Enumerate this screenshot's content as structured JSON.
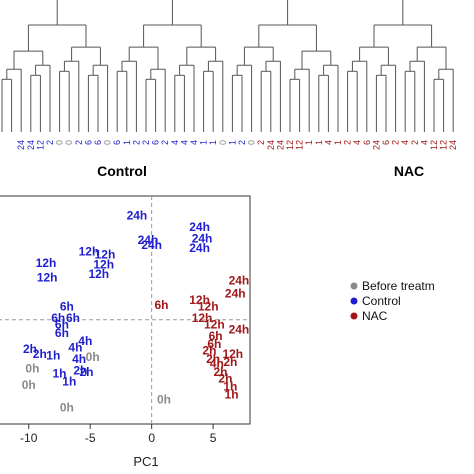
{
  "colors": {
    "before": "#8a8a8a",
    "control": "#1f1fcf",
    "nac": "#a01818",
    "line": "#555555"
  },
  "chart_data": [
    {
      "type": "dendrogram",
      "leaves": [
        {
          "label": "",
          "group": "control"
        },
        {
          "label": "",
          "group": "control"
        },
        {
          "label": "24",
          "group": "control"
        },
        {
          "label": "24",
          "group": "control"
        },
        {
          "label": "12",
          "group": "control"
        },
        {
          "label": "2",
          "group": "control"
        },
        {
          "label": "0",
          "group": "before"
        },
        {
          "label": "0",
          "group": "before"
        },
        {
          "label": "2",
          "group": "control"
        },
        {
          "label": "6",
          "group": "control"
        },
        {
          "label": "6",
          "group": "control"
        },
        {
          "label": "0",
          "group": "before"
        },
        {
          "label": "6",
          "group": "control"
        },
        {
          "label": "1",
          "group": "control"
        },
        {
          "label": "2",
          "group": "control"
        },
        {
          "label": "2",
          "group": "control"
        },
        {
          "label": "6",
          "group": "control"
        },
        {
          "label": "2",
          "group": "control"
        },
        {
          "label": "4",
          "group": "control"
        },
        {
          "label": "4",
          "group": "control"
        },
        {
          "label": "4",
          "group": "control"
        },
        {
          "label": "1",
          "group": "control"
        },
        {
          "label": "1",
          "group": "control"
        },
        {
          "label": "0",
          "group": "before"
        },
        {
          "label": "1",
          "group": "control"
        },
        {
          "label": "2",
          "group": "control"
        },
        {
          "label": "0",
          "group": "before"
        },
        {
          "label": "2",
          "group": "nac"
        },
        {
          "label": "24",
          "group": "nac"
        },
        {
          "label": "24",
          "group": "nac"
        },
        {
          "label": "12",
          "group": "nac"
        },
        {
          "label": "12",
          "group": "nac"
        },
        {
          "label": "1",
          "group": "nac"
        },
        {
          "label": "1",
          "group": "nac"
        },
        {
          "label": "4",
          "group": "nac"
        },
        {
          "label": "1",
          "group": "nac"
        },
        {
          "label": "2",
          "group": "nac"
        },
        {
          "label": "4",
          "group": "nac"
        },
        {
          "label": "6",
          "group": "nac"
        },
        {
          "label": "24",
          "group": "nac"
        },
        {
          "label": "6",
          "group": "nac"
        },
        {
          "label": "2",
          "group": "nac"
        },
        {
          "label": "4",
          "group": "nac"
        },
        {
          "label": "2",
          "group": "nac"
        },
        {
          "label": "4",
          "group": "nac"
        },
        {
          "label": "12",
          "group": "nac"
        },
        {
          "label": "12",
          "group": "nac"
        },
        {
          "label": "24",
          "group": "nac"
        }
      ],
      "group_labels": {
        "control": "Control",
        "nac": "NAC"
      }
    },
    {
      "type": "scatter",
      "xlabel": "PC1",
      "ylabel": "",
      "xlim": [
        -12.5,
        8
      ],
      "ylim": [
        -6.4,
        7.6
      ],
      "x_ticks": [
        -10,
        -5,
        0,
        5
      ],
      "reference_lines": {
        "x": 0,
        "y": 0
      },
      "legend": {
        "placement": "right",
        "entries": [
          {
            "name": "Before treatm",
            "group": "before"
          },
          {
            "name": "Control",
            "group": "control"
          },
          {
            "name": "NAC",
            "group": "nac"
          }
        ]
      },
      "points": [
        {
          "x": -1.2,
          "y": 6.4,
          "label": "24h",
          "group": "control"
        },
        {
          "x": 3.9,
          "y": 5.7,
          "label": "24h",
          "group": "control"
        },
        {
          "x": -0.3,
          "y": 4.9,
          "label": "24h",
          "group": "control"
        },
        {
          "x": 0.0,
          "y": 4.6,
          "label": "24h",
          "group": "control"
        },
        {
          "x": 4.1,
          "y": 5.0,
          "label": "24h",
          "group": "control"
        },
        {
          "x": 3.9,
          "y": 4.4,
          "label": "24h",
          "group": "control"
        },
        {
          "x": -5.1,
          "y": 4.2,
          "label": "12h",
          "group": "control"
        },
        {
          "x": -3.8,
          "y": 4.0,
          "label": "12h",
          "group": "control"
        },
        {
          "x": -8.6,
          "y": 3.5,
          "label": "12h",
          "group": "control"
        },
        {
          "x": -3.9,
          "y": 3.4,
          "label": "12h",
          "group": "control"
        },
        {
          "x": -8.5,
          "y": 2.6,
          "label": "12h",
          "group": "control"
        },
        {
          "x": -4.3,
          "y": 2.8,
          "label": "12h",
          "group": "control"
        },
        {
          "x": 7.1,
          "y": 2.4,
          "label": "24h",
          "group": "nac"
        },
        {
          "x": 6.8,
          "y": 1.6,
          "label": "24h",
          "group": "nac"
        },
        {
          "x": 3.9,
          "y": 1.2,
          "label": "12h",
          "group": "nac"
        },
        {
          "x": 0.8,
          "y": 0.9,
          "label": "6h",
          "group": "nac"
        },
        {
          "x": 4.6,
          "y": 0.8,
          "label": "12h",
          "group": "nac"
        },
        {
          "x": 4.1,
          "y": 0.1,
          "label": "12h",
          "group": "nac"
        },
        {
          "x": 5.1,
          "y": -0.3,
          "label": "12h",
          "group": "nac"
        },
        {
          "x": 7.1,
          "y": -0.6,
          "label": "24h",
          "group": "nac"
        },
        {
          "x": 5.2,
          "y": -1.0,
          "label": "6h",
          "group": "nac"
        },
        {
          "x": 5.1,
          "y": -1.5,
          "label": "6h",
          "group": "nac"
        },
        {
          "x": 4.7,
          "y": -1.9,
          "label": "2h",
          "group": "nac"
        },
        {
          "x": 6.6,
          "y": -2.1,
          "label": "12h",
          "group": "nac"
        },
        {
          "x": 5.0,
          "y": -2.4,
          "label": "2h",
          "group": "nac"
        },
        {
          "x": 5.3,
          "y": -2.7,
          "label": "4h",
          "group": "nac"
        },
        {
          "x": 6.4,
          "y": -2.6,
          "label": "2h",
          "group": "nac"
        },
        {
          "x": 5.6,
          "y": -3.2,
          "label": "2h",
          "group": "nac"
        },
        {
          "x": 6.0,
          "y": -3.6,
          "label": "2h",
          "group": "nac"
        },
        {
          "x": 6.4,
          "y": -4.1,
          "label": "1h",
          "group": "nac"
        },
        {
          "x": 6.5,
          "y": -4.6,
          "label": "1h",
          "group": "nac"
        },
        {
          "x": -6.9,
          "y": 0.8,
          "label": "6h",
          "group": "control"
        },
        {
          "x": -7.6,
          "y": 0.1,
          "label": "6h",
          "group": "control"
        },
        {
          "x": -6.4,
          "y": 0.1,
          "label": "6h",
          "group": "control"
        },
        {
          "x": -7.3,
          "y": -0.3,
          "label": "6h",
          "group": "control"
        },
        {
          "x": -7.3,
          "y": -0.8,
          "label": "6h",
          "group": "control"
        },
        {
          "x": -5.4,
          "y": -1.3,
          "label": "4h",
          "group": "control"
        },
        {
          "x": -6.2,
          "y": -1.7,
          "label": "4h",
          "group": "control"
        },
        {
          "x": -9.9,
          "y": -1.8,
          "label": "2h",
          "group": "control"
        },
        {
          "x": -9.1,
          "y": -2.1,
          "label": "2h",
          "group": "control"
        },
        {
          "x": -5.9,
          "y": -2.4,
          "label": "4h",
          "group": "control"
        },
        {
          "x": -8.0,
          "y": -2.2,
          "label": "1h",
          "group": "control"
        },
        {
          "x": -5.8,
          "y": -3.1,
          "label": "2h",
          "group": "control"
        },
        {
          "x": -5.3,
          "y": -3.2,
          "label": "2h",
          "group": "control"
        },
        {
          "x": -7.5,
          "y": -3.3,
          "label": "1h",
          "group": "control"
        },
        {
          "x": -6.7,
          "y": -3.8,
          "label": "1h",
          "group": "control"
        },
        {
          "x": -4.8,
          "y": -2.3,
          "label": "0h",
          "group": "before"
        },
        {
          "x": -9.7,
          "y": -3.0,
          "label": "0h",
          "group": "before"
        },
        {
          "x": -10.0,
          "y": -4.0,
          "label": "0h",
          "group": "before"
        },
        {
          "x": -6.9,
          "y": -5.4,
          "label": "0h",
          "group": "before"
        },
        {
          "x": 1.0,
          "y": -4.9,
          "label": "0h",
          "group": "before"
        }
      ]
    }
  ]
}
